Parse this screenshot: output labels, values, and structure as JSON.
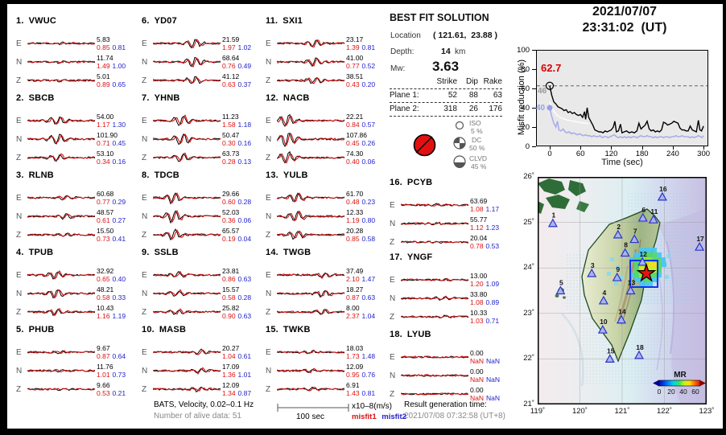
{
  "stations": [
    {
      "n": "1.",
      "name": "VWUC",
      "rows": [
        {
          "ch": "E",
          "amp": "5.83",
          "m1": "0.85",
          "m2": "0.81"
        },
        {
          "ch": "N",
          "amp": "11.74",
          "m1": "1.49",
          "m2": "1.00"
        },
        {
          "ch": "Z",
          "amp": "5.01",
          "m1": "0.89",
          "m2": "0.65"
        }
      ]
    },
    {
      "n": "2.",
      "name": "SBCB",
      "rows": [
        {
          "ch": "E",
          "amp": "54.00",
          "m1": "1.17",
          "m2": "1.30"
        },
        {
          "ch": "N",
          "amp": "101.90",
          "m1": "0.71",
          "m2": "0.45"
        },
        {
          "ch": "Z",
          "amp": "53.10",
          "m1": "0.34",
          "m2": "0.16"
        }
      ]
    },
    {
      "n": "3.",
      "name": "RLNB",
      "rows": [
        {
          "ch": "E",
          "amp": "60.68",
          "m1": "0.77",
          "m2": "0.29"
        },
        {
          "ch": "N",
          "amp": "48.57",
          "m1": "0.61",
          "m2": "0.27"
        },
        {
          "ch": "Z",
          "amp": "15.50",
          "m1": "0.73",
          "m2": "0.41"
        }
      ]
    },
    {
      "n": "4.",
      "name": "TPUB",
      "rows": [
        {
          "ch": "E",
          "amp": "32.92",
          "m1": "0.65",
          "m2": "0.40"
        },
        {
          "ch": "N",
          "amp": "48.21",
          "m1": "0.58",
          "m2": "0.33"
        },
        {
          "ch": "Z",
          "amp": "10.43",
          "m1": "1.16",
          "m2": "1.19"
        }
      ]
    },
    {
      "n": "5.",
      "name": "PHUB",
      "rows": [
        {
          "ch": "E",
          "amp": "9.67",
          "m1": "0.87",
          "m2": "0.64"
        },
        {
          "ch": "N",
          "amp": "11.76",
          "m1": "1.01",
          "m2": "0.73"
        },
        {
          "ch": "Z",
          "amp": "9.66",
          "m1": "0.53",
          "m2": "0.21"
        }
      ]
    },
    {
      "n": "6.",
      "name": "YD07",
      "rows": [
        {
          "ch": "E",
          "amp": "21.59",
          "m1": "1.97",
          "m2": "1.02"
        },
        {
          "ch": "N",
          "amp": "68.64",
          "m1": "0.76",
          "m2": "0.49"
        },
        {
          "ch": "Z",
          "amp": "41.12",
          "m1": "0.63",
          "m2": "0.37"
        }
      ]
    },
    {
      "n": "7.",
      "name": "YHNB",
      "rows": [
        {
          "ch": "E",
          "amp": "11.23",
          "m1": "1.58",
          "m2": "1.18"
        },
        {
          "ch": "N",
          "amp": "50.47",
          "m1": "0.30",
          "m2": "0.16"
        },
        {
          "ch": "Z",
          "amp": "63.73",
          "m1": "0.28",
          "m2": "0.13"
        }
      ]
    },
    {
      "n": "8.",
      "name": "TDCB",
      "rows": [
        {
          "ch": "E",
          "amp": "29.66",
          "m1": "0.60",
          "m2": "0.28"
        },
        {
          "ch": "N",
          "amp": "52.03",
          "m1": "0.36",
          "m2": "0.06"
        },
        {
          "ch": "Z",
          "amp": "65.57",
          "m1": "0.19",
          "m2": "0.04"
        }
      ]
    },
    {
      "n": "9.",
      "name": "SSLB",
      "rows": [
        {
          "ch": "E",
          "amp": "23.81",
          "m1": "0.86",
          "m2": "0.63"
        },
        {
          "ch": "N",
          "amp": "15.57",
          "m1": "0.58",
          "m2": "0.28"
        },
        {
          "ch": "Z",
          "amp": "25.82",
          "m1": "0.90",
          "m2": "0.63"
        }
      ]
    },
    {
      "n": "10.",
      "name": "MASB",
      "rows": [
        {
          "ch": "E",
          "amp": "20.27",
          "m1": "1.04",
          "m2": "0.61"
        },
        {
          "ch": "N",
          "amp": "17.09",
          "m1": "1.36",
          "m2": "1.01"
        },
        {
          "ch": "Z",
          "amp": "12.09",
          "m1": "1.34",
          "m2": "0.87"
        }
      ]
    },
    {
      "n": "11.",
      "name": "SXI1",
      "rows": [
        {
          "ch": "E",
          "amp": "23.17",
          "m1": "1.39",
          "m2": "0.81"
        },
        {
          "ch": "N",
          "amp": "41.00",
          "m1": "0.77",
          "m2": "0.52"
        },
        {
          "ch": "Z",
          "amp": "38.51",
          "m1": "0.43",
          "m2": "0.20"
        }
      ]
    },
    {
      "n": "12.",
      "name": "NACB",
      "rows": [
        {
          "ch": "E",
          "amp": "22.21",
          "m1": "0.84",
          "m2": "0.57"
        },
        {
          "ch": "N",
          "amp": "107.86",
          "m1": "0.45",
          "m2": "0.26"
        },
        {
          "ch": "Z",
          "amp": "74.30",
          "m1": "0.40",
          "m2": "0.06"
        }
      ]
    },
    {
      "n": "13.",
      "name": "YULB",
      "rows": [
        {
          "ch": "E",
          "amp": "61.70",
          "m1": "0.48",
          "m2": "0.23"
        },
        {
          "ch": "N",
          "amp": "12.33",
          "m1": "1.19",
          "m2": "0.80"
        },
        {
          "ch": "Z",
          "amp": "20.28",
          "m1": "0.85",
          "m2": "0.58"
        }
      ]
    },
    {
      "n": "14.",
      "name": "TWGB",
      "rows": [
        {
          "ch": "E",
          "amp": "37.49",
          "m1": "2.10",
          "m2": "1.47"
        },
        {
          "ch": "N",
          "amp": "18.27",
          "m1": "0.87",
          "m2": "0.63"
        },
        {
          "ch": "Z",
          "amp": "8.00",
          "m1": "2.37",
          "m2": "1.04"
        }
      ]
    },
    {
      "n": "15.",
      "name": "TWKB",
      "rows": [
        {
          "ch": "E",
          "amp": "18.03",
          "m1": "1.73",
          "m2": "1.48"
        },
        {
          "ch": "N",
          "amp": "12.09",
          "m1": "0.95",
          "m2": "0.76"
        },
        {
          "ch": "Z",
          "amp": "6.91",
          "m1": "1.43",
          "m2": "0.81"
        }
      ]
    },
    {
      "n": "16.",
      "name": "PCYB",
      "rows": [
        {
          "ch": "E",
          "amp": "63.69",
          "m1": "1.08",
          "m2": "1.17"
        },
        {
          "ch": "N",
          "amp": "55.77",
          "m1": "1.12",
          "m2": "1.23"
        },
        {
          "ch": "Z",
          "amp": "20.04",
          "m1": "0.78",
          "m2": "0.53"
        }
      ]
    },
    {
      "n": "17.",
      "name": "YNGF",
      "rows": [
        {
          "ch": "E",
          "amp": "13.00",
          "m1": "1.20",
          "m2": "1.09"
        },
        {
          "ch": "N",
          "amp": "33.80",
          "m1": "1.08",
          "m2": "0.89"
        },
        {
          "ch": "Z",
          "amp": "10.33",
          "m1": "1.03",
          "m2": "0.71"
        }
      ]
    },
    {
      "n": "18.",
      "name": "LYUB",
      "rows": [
        {
          "ch": "E",
          "amp": "0.00",
          "m1": "NaN",
          "m2": "NaN"
        },
        {
          "ch": "N",
          "amp": "0.00",
          "m1": "NaN",
          "m2": "NaN"
        },
        {
          "ch": "Z",
          "amp": "0.00",
          "m1": "NaN",
          "m2": "NaN"
        }
      ]
    }
  ],
  "solution": {
    "title": "BEST FIT SOLUTION",
    "location_label": "Location",
    "location_value": "( 121.61,  23.88 )",
    "depth_label": "Depth:",
    "depth_value": "14",
    "depth_unit": "km",
    "mw_label": "Mw:",
    "mw_value": "3.63",
    "table": {
      "col_strike": "Strike",
      "col_dip": "Dip",
      "col_rake": "Rake",
      "rows": [
        {
          "label": "Plane 1:",
          "strike": "52",
          "dip": "88",
          "rake": "63"
        },
        {
          "label": "Plane 2:",
          "strike": "318",
          "dip": "26",
          "rake": "176"
        }
      ]
    },
    "decomposition": [
      {
        "label": "ISO",
        "pct": "5 %"
      },
      {
        "label": "DC",
        "pct": "50 %"
      },
      {
        "label": "CLVD",
        "pct": "45 %"
      }
    ],
    "beachball_color": "#e21010"
  },
  "misfit_plot": {
    "title_line1": "2021/07/07",
    "title_line2": "23:31:02  (UT)",
    "ylabel": "Misfit reduction (%)",
    "xlabel": "Time (sec)",
    "peak_label": "62.7",
    "white_start_label": "46",
    "blue_start_label": "40",
    "yticks": [
      "0",
      "20",
      "40",
      "60",
      "80",
      "100"
    ],
    "ytick_vals": [
      0,
      20,
      40,
      60,
      80,
      100
    ],
    "xticks": [
      "0",
      "60",
      "120",
      "180",
      "240",
      "300"
    ],
    "xtick_vals": [
      0,
      60,
      120,
      180,
      240,
      300
    ]
  },
  "chart_data": {
    "type": "line",
    "title": "2021/07/07 23:31:02 (UT)",
    "xlabel": "Time (sec)",
    "ylabel": "Misfit reduction (%)",
    "xlim": [
      0,
      300
    ],
    "ylim": [
      0,
      100
    ],
    "dashed_line_y": 62.7,
    "legend_position": "none",
    "grid": false,
    "series": [
      {
        "name": "misfit reduction (black)",
        "color": "#000000",
        "start_marker": "open-circle",
        "start_value": 62.7,
        "x": [
          0,
          4,
          8,
          12,
          16,
          20,
          24,
          28,
          32,
          36,
          40,
          44,
          48,
          52,
          56,
          60,
          64,
          68,
          70,
          73,
          76,
          80,
          84,
          88,
          92,
          96,
          100,
          104,
          108,
          112,
          116,
          120,
          124,
          127,
          130,
          134,
          138,
          141,
          145,
          150,
          155,
          160,
          165,
          170,
          174,
          178,
          182,
          186,
          190,
          194,
          198,
          202,
          206,
          210,
          214,
          218,
          222,
          226,
          230,
          234,
          238,
          242,
          246,
          250,
          254,
          258,
          262,
          266,
          270,
          274,
          278,
          282,
          286,
          290,
          293,
          296,
          300
        ],
        "y": [
          62.7,
          53,
          46,
          44,
          41,
          40,
          39,
          37,
          38,
          35,
          36,
          34,
          35,
          33,
          32,
          33,
          30,
          36,
          28,
          40,
          30,
          26,
          22,
          17,
          16,
          15,
          15,
          14,
          16,
          15,
          16,
          17,
          20,
          26,
          15,
          16,
          23,
          14,
          15,
          16,
          14,
          15,
          14,
          16,
          24,
          18,
          20,
          22,
          26,
          18,
          16,
          17,
          15,
          16,
          15,
          17,
          25,
          24,
          22,
          23,
          24,
          26,
          25,
          24,
          19,
          17,
          17,
          16,
          16,
          21,
          17,
          16,
          15,
          27,
          17,
          16,
          21
        ]
      },
      {
        "name": "secondary (white)",
        "color": "#ffffff",
        "start_value": 46,
        "x": [
          0,
          5,
          10,
          15,
          20,
          25,
          30,
          35,
          40,
          45,
          50,
          55,
          60,
          65,
          70,
          75
        ],
        "y": [
          46,
          39,
          35,
          32,
          30,
          29,
          28,
          27,
          27,
          26,
          26,
          25,
          25,
          24,
          24,
          23
        ]
      },
      {
        "name": "misfit2 reduction (lavender)",
        "color": "#a8aee8",
        "start_marker": "filled-circle",
        "start_value": 40,
        "x": [
          0,
          4,
          8,
          12,
          15,
          18,
          22,
          26,
          30,
          34,
          38,
          42,
          46,
          50,
          54,
          58,
          62,
          66,
          70,
          74,
          78,
          82,
          86,
          90,
          94,
          98,
          102,
          106,
          110,
          114,
          118,
          122,
          126,
          130,
          134,
          138,
          142,
          146,
          150,
          154,
          158,
          162,
          166,
          170,
          174,
          178,
          182,
          186,
          190,
          194,
          198,
          202,
          206,
          210,
          214,
          218,
          222,
          226,
          230,
          234,
          238,
          242,
          246,
          250,
          254,
          258,
          262,
          266,
          270,
          274,
          278,
          282,
          286,
          290,
          294,
          297,
          300
        ],
        "y": [
          40,
          31,
          24,
          20,
          26,
          17,
          16,
          18,
          15,
          14,
          15,
          13,
          14,
          13,
          12,
          13,
          12,
          11,
          12,
          11,
          11,
          10,
          11,
          10,
          10,
          11,
          9,
          10,
          10,
          9,
          10,
          11,
          12,
          10,
          9,
          10,
          9,
          10,
          9,
          10,
          9,
          10,
          10,
          9,
          10,
          11,
          10,
          10,
          11,
          10,
          10,
          9,
          10,
          9,
          10,
          10,
          9,
          10,
          10,
          9,
          10,
          10,
          11,
          10,
          10,
          11,
          10,
          10,
          10,
          9,
          10,
          9,
          10,
          11,
          10,
          9,
          11
        ]
      }
    ],
    "annotations": [
      {
        "text": "62.7",
        "color": "#dd0000"
      },
      {
        "text": "46",
        "color": "#999999"
      },
      {
        "text": "40",
        "color": "#9aa0e8"
      }
    ]
  },
  "map": {
    "lat_labels": [
      "26˚",
      "25˚",
      "24˚",
      "23˚",
      "22˚",
      "21˚"
    ],
    "lat_vals": [
      26,
      25,
      24,
      23,
      22,
      21
    ],
    "lon_labels": [
      "119˚",
      "120˚",
      "121˚",
      "122˚",
      "123˚"
    ],
    "lon_vals": [
      119,
      120,
      121,
      122,
      123
    ],
    "colorbar": {
      "label": "MR",
      "tick0": "0",
      "tick20": "20",
      "tick40": "40",
      "tick60": "60"
    },
    "epicenter": {
      "lon": 121.61,
      "lat": 23.88
    },
    "stations": [
      {
        "num": "1",
        "lon": 119.36,
        "lat": 24.98
      },
      {
        "num": "2",
        "lon": 120.9,
        "lat": 24.73
      },
      {
        "num": "3",
        "lon": 120.28,
        "lat": 23.88
      },
      {
        "num": "4",
        "lon": 120.56,
        "lat": 23.28
      },
      {
        "num": "5",
        "lon": 119.54,
        "lat": 23.5
      },
      {
        "num": "6",
        "lon": 121.49,
        "lat": 25.1
      },
      {
        "num": "7",
        "lon": 121.29,
        "lat": 24.63
      },
      {
        "num": "8",
        "lon": 121.07,
        "lat": 24.33
      },
      {
        "num": "9",
        "lon": 120.88,
        "lat": 23.79
      },
      {
        "num": "10",
        "lon": 120.54,
        "lat": 22.64
      },
      {
        "num": "11",
        "lon": 121.74,
        "lat": 25.06
      },
      {
        "num": "12",
        "lon": 121.48,
        "lat": 24.13
      },
      {
        "num": "13",
        "lon": 121.2,
        "lat": 23.5
      },
      {
        "num": "14",
        "lon": 120.98,
        "lat": 22.86
      },
      {
        "num": "15",
        "lon": 120.71,
        "lat": 22.0
      },
      {
        "num": "16",
        "lon": 121.95,
        "lat": 25.56
      },
      {
        "num": "17",
        "lon": 122.83,
        "lat": 24.46
      },
      {
        "num": "18",
        "lon": 121.4,
        "lat": 22.08
      }
    ]
  },
  "footer": {
    "line1": "BATS, Velocity, 0.02–0.1 Hz",
    "line2": "Number of alive data: 51",
    "scale_label": "100 sec",
    "unit_label": "x10–8(m/s)",
    "legend1": "misfit1",
    "legend2": "misfit2",
    "result_label": "Result generation time:",
    "result_value": "2021/07/08 07:32:58 (UT+8)"
  }
}
